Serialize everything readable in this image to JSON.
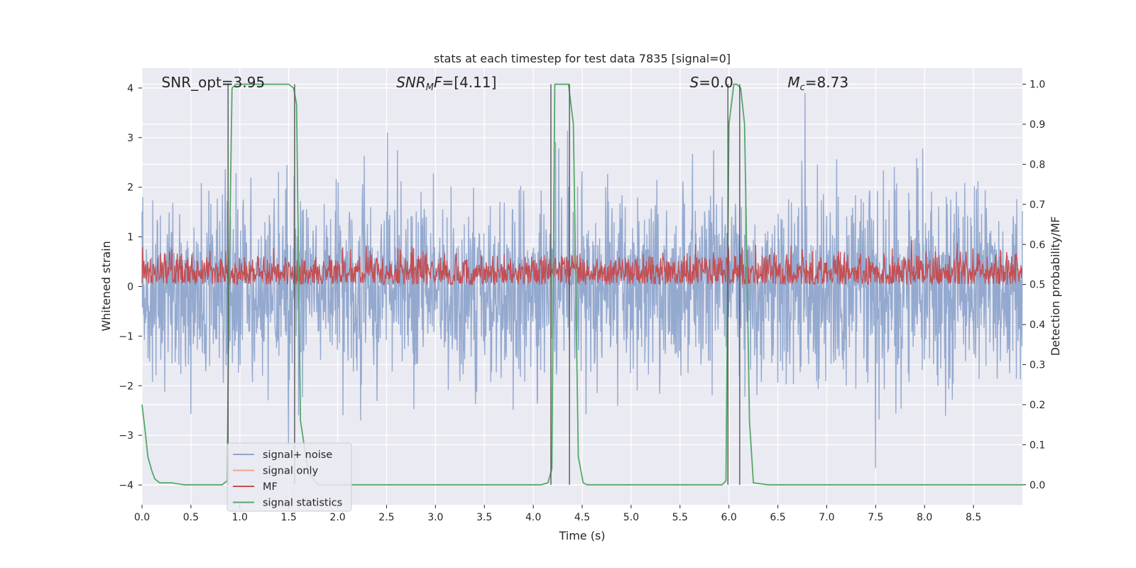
{
  "chart_data": {
    "type": "line",
    "title": "stats at each timestep for test data 7835 [signal=0]",
    "xlabel": "Time (s)",
    "ylabel_left": "Whitened strain",
    "ylabel_right": "Detection probability/MF",
    "xlim": [
      0,
      9.0
    ],
    "ylim_left": [
      -4.4,
      4.4
    ],
    "ylim_right": [
      -0.05,
      1.04
    ],
    "grid": true,
    "legend_position": "lower-left",
    "x_ticks": [
      0.0,
      0.5,
      1.0,
      1.5,
      2.0,
      2.5,
      3.0,
      3.5,
      4.0,
      4.5,
      5.0,
      5.5,
      6.0,
      6.5,
      7.0,
      7.5,
      8.0,
      8.5
    ],
    "x_tick_labels": [
      "0.0",
      "0.5",
      "1.0",
      "1.5",
      "2.0",
      "2.5",
      "3.0",
      "3.5",
      "4.0",
      "4.5",
      "5.0",
      "5.5",
      "6.0",
      "6.5",
      "7.0",
      "7.5",
      "8.0",
      "8.5"
    ],
    "y_ticks_left": [
      4,
      3,
      2,
      1,
      0,
      -1,
      -2,
      -3,
      -4
    ],
    "y_tick_labels_left": [
      "4",
      "3",
      "2",
      "1",
      "0",
      "−1",
      "−2",
      "−3",
      "−4"
    ],
    "y_ticks_right": [
      1.0,
      0.9,
      0.8,
      0.7,
      0.6,
      0.5,
      0.4,
      0.3,
      0.2,
      0.1,
      0.0
    ],
    "y_tick_labels_right": [
      "1.0",
      "0.9",
      "0.8",
      "0.7",
      "0.6",
      "0.5",
      "0.4",
      "0.3",
      "0.2",
      "0.1",
      "0.0"
    ],
    "annotations": [
      {
        "text": "SNR_opt=3.95",
        "x": 0.2
      },
      {
        "html": "<tspan font-style=\"italic\">SNR</tspan><tspan font-style=\"italic\" font-size=\"13\" dy=\"4\">M</tspan><tspan font-style=\"italic\" dy=\"-4\">F</tspan>=[4.11]",
        "x": 2.6
      },
      {
        "html": "<tspan font-style=\"italic\">S</tspan>=0.0",
        "x": 5.6
      },
      {
        "html": "<tspan font-style=\"italic\">M</tspan><tspan font-style=\"italic\" font-size=\"13\" dy=\"4\">c</tspan><tspan dy=\"-4\">=8.73</tspan>",
        "x": 6.6
      }
    ],
    "vlines": [
      0.88,
      1.56,
      4.18,
      4.37,
      5.99,
      6.11
    ],
    "colors": {
      "background": "#eaeaf2",
      "grid": "#ffffff",
      "noise": "#8fa5cc",
      "signal_only": "#eea58a",
      "mf": "#c44e52",
      "statistics": "#55a868",
      "vline": "#555555"
    },
    "series": [
      {
        "name": "signal+ noise",
        "axis": "left",
        "kind": "noise",
        "envelope": {
          "points": 2200,
          "sigma": 1.0,
          "max_abs": 3.9,
          "seed": 7835
        }
      },
      {
        "name": "signal only",
        "axis": "left",
        "values": []
      },
      {
        "name": "MF",
        "axis": "right",
        "kind": "mf-noise",
        "envelope": {
          "points": 1800,
          "baseline": 0.53,
          "spread": 0.025,
          "max": 0.63,
          "seed": 91
        }
      },
      {
        "name": "signal statistics",
        "axis": "right",
        "x": [
          0.0,
          0.03,
          0.06,
          0.1,
          0.13,
          0.18,
          0.3,
          0.43,
          0.55,
          0.82,
          0.87,
          0.89,
          0.92,
          0.96,
          1.5,
          1.55,
          1.58,
          1.62,
          1.7,
          1.8,
          4.08,
          4.15,
          4.19,
          4.22,
          4.3,
          4.36,
          4.41,
          4.46,
          4.51,
          4.55,
          5.93,
          5.97,
          6.0,
          6.05,
          6.08,
          6.12,
          6.16,
          6.21,
          6.25,
          6.4,
          9.0
        ],
        "values": [
          0.2,
          0.14,
          0.07,
          0.035,
          0.015,
          0.005,
          0.005,
          0.0,
          0.0,
          0.0,
          0.01,
          0.5,
          0.99,
          1.0,
          1.0,
          0.99,
          0.95,
          0.16,
          0.03,
          0.0,
          0.0,
          0.005,
          0.04,
          1.0,
          1.0,
          1.0,
          0.9,
          0.07,
          0.005,
          0.0,
          0.0,
          0.01,
          0.9,
          1.0,
          1.0,
          0.99,
          0.9,
          0.16,
          0.005,
          0.0,
          0.0
        ]
      }
    ]
  }
}
